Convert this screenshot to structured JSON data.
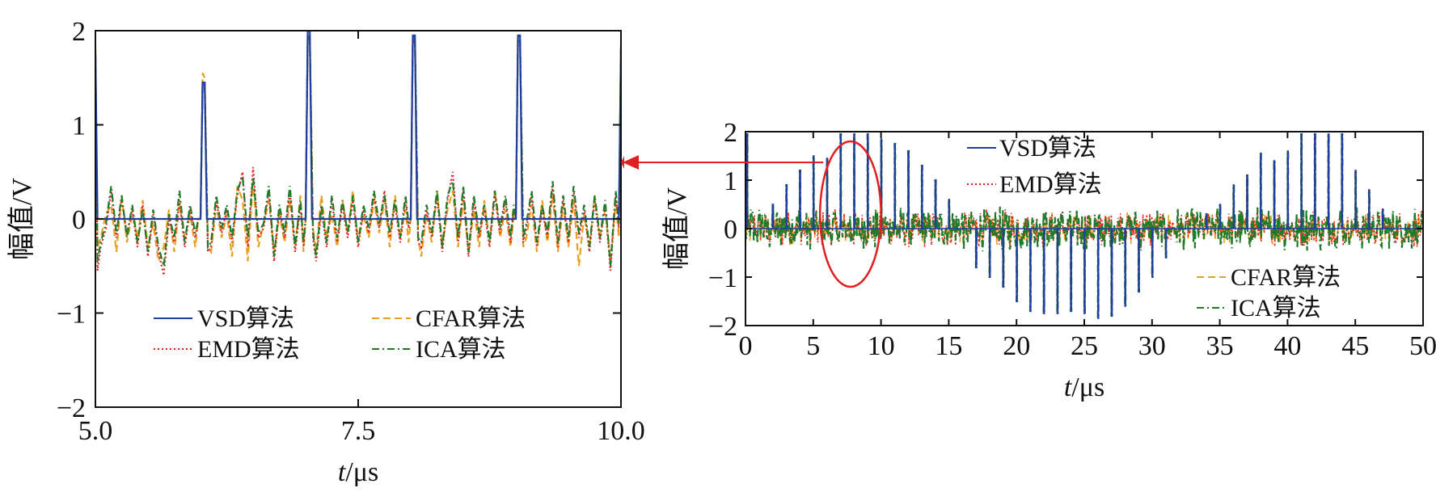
{
  "colors": {
    "vsd": "#1f3fa0",
    "emd": "#e02020",
    "cfar": "#e8a020",
    "ica": "#1f7a2a",
    "annotation": "#e02020",
    "axis": "#111111"
  },
  "chart_data": [
    {
      "type": "line",
      "panel": "left-zoom",
      "xlabel_italic": "t",
      "xlabel_unit": "/μs",
      "ylabel": "幅值/V",
      "xlim": [
        5.0,
        10.0
      ],
      "ylim": [
        -2,
        2
      ],
      "xticks": [
        5.0,
        7.5,
        10.0
      ],
      "xtick_labels": [
        "5.0",
        "7.5",
        "10.0"
      ],
      "yticks": [
        -2,
        -1,
        0,
        1,
        2
      ],
      "ytick_labels": [
        "−2",
        "−1",
        "0",
        "1",
        "2"
      ],
      "legend": {
        "placement": "lower-center, two columns",
        "entries": [
          {
            "label": "VSD算法",
            "series": "VSD",
            "style": "solid"
          },
          {
            "label": "CFAR算法",
            "series": "CFAR",
            "style": "dashed"
          },
          {
            "label": "EMD算法",
            "series": "EMD",
            "style": "dotted"
          },
          {
            "label": "ICA算法",
            "series": "ICA",
            "style": "dashdot"
          }
        ]
      },
      "series": [
        {
          "name": "VSD",
          "x": [
            5.0,
            5.02,
            5.04,
            6.0,
            6.02,
            6.04,
            6.06,
            7.0,
            7.02,
            7.04,
            7.06,
            8.0,
            8.02,
            8.04,
            8.06,
            9.0,
            9.02,
            9.04,
            9.06,
            9.98,
            10.0
          ],
          "y": [
            1.8,
            0.0,
            0.0,
            0.0,
            1.45,
            1.45,
            0.0,
            0.0,
            2.0,
            2.0,
            0.0,
            0.0,
            1.95,
            1.95,
            0.0,
            0.0,
            1.95,
            1.95,
            0.0,
            0.0,
            1.85
          ]
        },
        {
          "name": "EMD",
          "x": [
            5.0,
            5.02,
            5.05,
            5.1,
            5.15,
            5.2,
            5.25,
            5.3,
            5.35,
            5.4,
            5.45,
            5.5,
            5.55,
            5.6,
            5.65,
            5.7,
            5.75,
            5.8,
            5.85,
            5.9,
            5.95,
            5.98,
            6.0,
            6.02,
            6.04,
            6.07,
            6.1,
            6.15,
            6.2,
            6.25,
            6.3,
            6.35,
            6.4,
            6.45,
            6.5,
            6.55,
            6.6,
            6.65,
            6.7,
            6.75,
            6.8,
            6.85,
            6.9,
            6.95,
            6.98,
            7.0,
            7.02,
            7.04,
            7.07,
            7.1,
            7.15,
            7.2,
            7.25,
            7.3,
            7.35,
            7.4,
            7.45,
            7.5,
            7.55,
            7.6,
            7.65,
            7.7,
            7.75,
            7.8,
            7.85,
            7.9,
            7.95,
            7.98,
            8.0,
            8.02,
            8.04,
            8.07,
            8.1,
            8.15,
            8.2,
            8.25,
            8.3,
            8.35,
            8.4,
            8.45,
            8.5,
            8.55,
            8.6,
            8.65,
            8.7,
            8.75,
            8.8,
            8.85,
            8.9,
            8.95,
            8.98,
            9.0,
            9.02,
            9.04,
            9.07,
            9.1,
            9.15,
            9.2,
            9.25,
            9.3,
            9.35,
            9.4,
            9.45,
            9.5,
            9.55,
            9.6,
            9.65,
            9.7,
            9.75,
            9.8,
            9.85,
            9.9,
            9.95,
            9.98,
            10.0
          ],
          "y": [
            1.7,
            -0.55,
            -0.3,
            -0.1,
            0.3,
            -0.2,
            0.2,
            -0.15,
            0.1,
            -0.3,
            0.15,
            -0.4,
            0.05,
            -0.35,
            -0.6,
            0.0,
            -0.25,
            0.2,
            -0.3,
            0.1,
            -0.2,
            0.0,
            0.0,
            1.45,
            1.4,
            -0.35,
            -0.3,
            0.2,
            -0.15,
            0.1,
            -0.25,
            0.25,
            0.5,
            -0.3,
            0.55,
            -0.2,
            -0.1,
            0.3,
            -0.45,
            0.1,
            -0.2,
            0.3,
            -0.35,
            0.15,
            -0.3,
            0.0,
            1.95,
            1.9,
            -0.2,
            -0.45,
            0.1,
            -0.3,
            0.2,
            -0.25,
            0.15,
            -0.2,
            0.2,
            -0.3,
            0.1,
            -0.15,
            0.25,
            -0.1,
            0.3,
            -0.2,
            0.15,
            -0.25,
            0.2,
            -0.1,
            0.0,
            1.9,
            1.85,
            -0.25,
            -0.3,
            0.1,
            -0.2,
            0.25,
            -0.35,
            0.2,
            0.5,
            -0.25,
            0.3,
            -0.4,
            0.2,
            -0.2,
            0.1,
            -0.3,
            0.25,
            -0.15,
            0.2,
            -0.25,
            0.1,
            0.0,
            1.9,
            1.85,
            -0.25,
            -0.1,
            0.25,
            -0.3,
            0.1,
            -0.2,
            0.35,
            -0.3,
            0.2,
            -0.25,
            0.3,
            -0.2,
            0.1,
            -0.35,
            0.2,
            -0.25,
            0.15,
            -0.55,
            0.25,
            -0.1,
            1.75
          ]
        },
        {
          "name": "CFAR",
          "x": [
            5.0,
            5.02,
            5.05,
            5.1,
            5.15,
            5.2,
            5.25,
            5.3,
            5.35,
            5.4,
            5.45,
            5.5,
            5.55,
            5.6,
            5.65,
            5.7,
            5.75,
            5.8,
            5.85,
            5.9,
            5.95,
            5.98,
            6.0,
            6.02,
            6.04,
            6.07,
            6.1,
            6.15,
            6.2,
            6.25,
            6.3,
            6.35,
            6.4,
            6.45,
            6.5,
            6.55,
            6.6,
            6.65,
            6.7,
            6.75,
            6.8,
            6.85,
            6.9,
            6.95,
            6.98,
            7.0,
            7.02,
            7.04,
            7.07,
            7.1,
            7.15,
            7.2,
            7.25,
            7.3,
            7.35,
            7.4,
            7.45,
            7.5,
            7.55,
            7.6,
            7.65,
            7.7,
            7.75,
            7.8,
            7.85,
            7.9,
            7.95,
            7.98,
            8.0,
            8.02,
            8.04,
            8.07,
            8.1,
            8.15,
            8.2,
            8.25,
            8.3,
            8.35,
            8.4,
            8.45,
            8.5,
            8.55,
            8.6,
            8.65,
            8.7,
            8.75,
            8.8,
            8.85,
            8.9,
            8.95,
            8.98,
            9.0,
            9.02,
            9.04,
            9.07,
            9.1,
            9.15,
            9.2,
            9.25,
            9.3,
            9.35,
            9.4,
            9.45,
            9.5,
            9.55,
            9.6,
            9.65,
            9.7,
            9.75,
            9.8,
            9.85,
            9.9,
            9.95,
            9.98,
            10.0
          ],
          "y": [
            1.85,
            -0.3,
            -0.2,
            0.05,
            0.15,
            -0.35,
            0.25,
            -0.25,
            0.05,
            -0.2,
            0.2,
            -0.3,
            -0.05,
            -0.45,
            -0.3,
            0.1,
            -0.35,
            0.15,
            -0.2,
            0.05,
            -0.3,
            0.0,
            0.0,
            1.55,
            1.5,
            -0.3,
            -0.35,
            0.15,
            -0.2,
            0.05,
            -0.4,
            0.35,
            0.2,
            -0.45,
            0.4,
            -0.3,
            -0.05,
            0.2,
            -0.35,
            0.05,
            -0.25,
            0.2,
            -0.3,
            0.25,
            -0.35,
            0.0,
            1.9,
            1.85,
            -0.1,
            -0.35,
            0.25,
            -0.2,
            0.05,
            -0.3,
            0.2,
            -0.15,
            0.3,
            -0.25,
            0.05,
            -0.2,
            0.2,
            -0.15,
            0.2,
            -0.3,
            0.25,
            -0.2,
            0.1,
            -0.25,
            0.0,
            1.95,
            1.85,
            -0.2,
            -0.4,
            0.05,
            -0.25,
            0.3,
            -0.3,
            0.1,
            0.3,
            -0.3,
            0.2,
            -0.35,
            0.1,
            -0.3,
            0.2,
            -0.25,
            0.3,
            -0.2,
            0.1,
            -0.3,
            0.05,
            0.0,
            1.85,
            1.8,
            -0.3,
            -0.2,
            0.15,
            -0.35,
            0.2,
            -0.25,
            0.25,
            -0.35,
            0.15,
            -0.3,
            0.2,
            -0.5,
            0.05,
            -0.3,
            0.25,
            -0.2,
            0.1,
            -0.45,
            0.2,
            -0.2,
            1.9
          ]
        },
        {
          "name": "ICA",
          "x": [
            5.0,
            5.02,
            5.05,
            5.1,
            5.15,
            5.2,
            5.25,
            5.3,
            5.35,
            5.4,
            5.45,
            5.5,
            5.55,
            5.6,
            5.65,
            5.7,
            5.75,
            5.8,
            5.85,
            5.9,
            5.95,
            5.98,
            6.0,
            6.02,
            6.04,
            6.07,
            6.1,
            6.15,
            6.2,
            6.25,
            6.3,
            6.35,
            6.4,
            6.45,
            6.5,
            6.55,
            6.6,
            6.65,
            6.7,
            6.75,
            6.8,
            6.85,
            6.9,
            6.95,
            6.98,
            7.0,
            7.02,
            7.04,
            7.07,
            7.1,
            7.15,
            7.2,
            7.25,
            7.3,
            7.35,
            7.4,
            7.45,
            7.5,
            7.55,
            7.6,
            7.65,
            7.7,
            7.75,
            7.8,
            7.85,
            7.9,
            7.95,
            7.98,
            8.0,
            8.02,
            8.04,
            8.07,
            8.1,
            8.15,
            8.2,
            8.25,
            8.3,
            8.35,
            8.4,
            8.45,
            8.5,
            8.55,
            8.6,
            8.65,
            8.7,
            8.75,
            8.8,
            8.85,
            8.9,
            8.95,
            8.98,
            9.0,
            9.02,
            9.04,
            9.07,
            9.1,
            9.15,
            9.2,
            9.25,
            9.3,
            9.35,
            9.4,
            9.45,
            9.5,
            9.55,
            9.6,
            9.65,
            9.7,
            9.75,
            9.8,
            9.85,
            9.9,
            9.95,
            9.98,
            10.0
          ],
          "y": [
            1.75,
            -0.45,
            -0.25,
            -0.05,
            0.35,
            -0.15,
            0.25,
            -0.2,
            0.15,
            -0.25,
            0.1,
            -0.35,
            0.1,
            -0.3,
            -0.5,
            0.05,
            -0.2,
            0.3,
            -0.25,
            0.15,
            -0.15,
            0.0,
            0.0,
            1.45,
            1.4,
            -0.3,
            -0.25,
            0.25,
            -0.1,
            0.15,
            -0.2,
            0.3,
            0.45,
            -0.2,
            0.45,
            -0.15,
            -0.05,
            0.35,
            -0.4,
            0.15,
            -0.15,
            0.35,
            -0.3,
            0.2,
            -0.25,
            0.0,
            1.95,
            1.9,
            -0.15,
            -0.4,
            0.15,
            -0.25,
            0.25,
            -0.2,
            0.2,
            -0.15,
            0.25,
            -0.25,
            0.15,
            -0.1,
            0.3,
            -0.05,
            0.25,
            -0.15,
            0.2,
            -0.2,
            0.25,
            -0.05,
            0.0,
            1.95,
            1.9,
            -0.2,
            -0.25,
            0.15,
            -0.15,
            0.3,
            -0.3,
            0.25,
            0.4,
            -0.2,
            0.35,
            -0.35,
            0.25,
            -0.15,
            0.15,
            -0.25,
            0.3,
            -0.1,
            0.25,
            -0.2,
            0.15,
            0.0,
            1.95,
            1.9,
            -0.2,
            -0.05,
            0.3,
            -0.25,
            0.15,
            -0.15,
            0.4,
            -0.25,
            0.25,
            -0.2,
            0.35,
            -0.15,
            0.15,
            -0.3,
            0.25,
            -0.2,
            0.2,
            -0.5,
            0.3,
            -0.05,
            1.8
          ]
        }
      ]
    },
    {
      "type": "line",
      "panel": "right-full",
      "xlabel_italic": "t",
      "xlabel_unit": "/μs",
      "ylabel": "幅值/V",
      "xlim": [
        0,
        50
      ],
      "ylim": [
        -2,
        2
      ],
      "xticks": [
        0,
        5,
        10,
        15,
        20,
        25,
        30,
        35,
        40,
        45,
        50
      ],
      "xtick_labels": [
        "0",
        "5",
        "10",
        "15",
        "20",
        "25",
        "30",
        "35",
        "40",
        "45",
        "50"
      ],
      "yticks": [
        -2,
        -1,
        0,
        1,
        2
      ],
      "ytick_labels": [
        "−2",
        "−1",
        "0",
        "1",
        "2"
      ],
      "legend": {
        "placement": "split: top-center (VSD, EMD) and bottom-right (CFAR, ICA)",
        "entries": [
          {
            "label": "VSD算法",
            "series": "VSD",
            "style": "solid"
          },
          {
            "label": "EMD算法",
            "series": "EMD",
            "style": "dotted"
          },
          {
            "label": "CFAR算法",
            "series": "CFAR",
            "style": "dashed"
          },
          {
            "label": "ICA算法",
            "series": "ICA",
            "style": "dashdot"
          }
        ]
      },
      "noise_level": 0.3,
      "spikes": [
        {
          "x": 0.1,
          "y": 1.95
        },
        {
          "x": 2.0,
          "y": 0.5
        },
        {
          "x": 3.0,
          "y": 0.9
        },
        {
          "x": 4.0,
          "y": 1.2
        },
        {
          "x": 5.0,
          "y": 1.5
        },
        {
          "x": 6.0,
          "y": 1.45
        },
        {
          "x": 7.0,
          "y": 1.95
        },
        {
          "x": 8.0,
          "y": 1.95
        },
        {
          "x": 9.0,
          "y": 1.95
        },
        {
          "x": 10.0,
          "y": 1.85
        },
        {
          "x": 11.0,
          "y": 1.75
        },
        {
          "x": 12.0,
          "y": 1.6
        },
        {
          "x": 13.0,
          "y": 1.3
        },
        {
          "x": 14.0,
          "y": 1.0
        },
        {
          "x": 15.0,
          "y": 0.6
        },
        {
          "x": 17.0,
          "y": -0.8
        },
        {
          "x": 18.0,
          "y": -1.0
        },
        {
          "x": 19.0,
          "y": -1.2
        },
        {
          "x": 20.0,
          "y": -1.5
        },
        {
          "x": 21.0,
          "y": -1.7
        },
        {
          "x": 22.0,
          "y": -1.75
        },
        {
          "x": 23.0,
          "y": -1.75
        },
        {
          "x": 24.0,
          "y": -1.7
        },
        {
          "x": 25.0,
          "y": -1.75
        },
        {
          "x": 26.0,
          "y": -1.85
        },
        {
          "x": 27.0,
          "y": -1.8
        },
        {
          "x": 28.0,
          "y": -1.6
        },
        {
          "x": 29.0,
          "y": -1.3
        },
        {
          "x": 30.0,
          "y": -1.0
        },
        {
          "x": 31.0,
          "y": -0.6
        },
        {
          "x": 34.0,
          "y": 0.3
        },
        {
          "x": 35.0,
          "y": 0.5
        },
        {
          "x": 36.0,
          "y": 0.9
        },
        {
          "x": 37.0,
          "y": 1.1
        },
        {
          "x": 38.0,
          "y": 1.55
        },
        {
          "x": 39.0,
          "y": 1.4
        },
        {
          "x": 40.0,
          "y": 1.6
        },
        {
          "x": 41.0,
          "y": 1.95
        },
        {
          "x": 42.0,
          "y": 1.95
        },
        {
          "x": 43.0,
          "y": 1.95
        },
        {
          "x": 44.0,
          "y": 1.95
        },
        {
          "x": 45.0,
          "y": 1.2
        },
        {
          "x": 46.0,
          "y": 0.8
        },
        {
          "x": 47.0,
          "y": 0.4
        }
      ]
    }
  ],
  "annotation": {
    "ellipse_x_range": [
      5.5,
      10.0
    ],
    "ellipse_y_range": [
      -1.2,
      1.8
    ],
    "arrow": "points from right-panel ellipse to left zoom panel"
  }
}
